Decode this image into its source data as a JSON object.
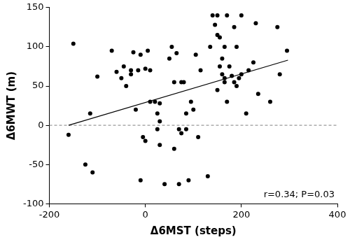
{
  "chart_data": {
    "type": "scatter",
    "x_label": "Δ6MST (steps)",
    "y_label": "Δ6MWT (m)",
    "annotation": "r=0.34; P=0.03",
    "xlim": [
      -200,
      400
    ],
    "xticks": [
      -200,
      0,
      200,
      400
    ],
    "ylim": [
      -100,
      150
    ],
    "yticks": [
      -100,
      -50,
      0,
      50,
      100,
      150
    ],
    "grid": false,
    "series": [
      {
        "type": "scatter",
        "color": "#000000",
        "marker": "circle",
        "x": [
          -150,
          -160,
          -125,
          -110,
          -115,
          -100,
          -70,
          -60,
          -50,
          -45,
          -40,
          -30,
          -25,
          -15,
          -10,
          0,
          5,
          10,
          -5,
          0,
          -20,
          -10,
          10,
          20,
          25,
          25,
          30,
          30,
          30,
          40,
          50,
          55,
          60,
          65,
          70,
          75,
          70,
          75,
          80,
          85,
          85,
          90,
          95,
          60,
          100,
          110,
          115,
          130,
          135,
          140,
          145,
          150,
          155,
          150,
          155,
          160,
          165,
          160,
          165,
          165,
          170,
          175,
          180,
          185,
          185,
          190,
          195,
          200,
          200,
          210,
          215,
          225,
          230,
          235,
          260,
          275,
          280,
          295,
          170,
          150,
          105,
          190,
          -30
        ],
        "values": [
          104,
          -12,
          -50,
          -60,
          15,
          62,
          95,
          68,
          60,
          75,
          50,
          65,
          93,
          70,
          90,
          72,
          95,
          70,
          -15,
          -20,
          20,
          -70,
          30,
          30,
          -5,
          15,
          5,
          28,
          -25,
          -75,
          85,
          100,
          55,
          92,
          -75,
          -10,
          -5,
          55,
          55,
          -5,
          15,
          -70,
          30,
          -30,
          20,
          -15,
          70,
          -65,
          100,
          140,
          128,
          140,
          112,
          115,
          75,
          85,
          55,
          65,
          60,
          100,
          140,
          75,
          63,
          55,
          125,
          50,
          60,
          140,
          65,
          15,
          70,
          80,
          130,
          40,
          30,
          125,
          65,
          95,
          30,
          45,
          90,
          100,
          70
        ]
      },
      {
        "type": "line",
        "color": "#000000",
        "line_style": "solid",
        "x": [
          -160,
          297
        ],
        "values": [
          0,
          83
        ]
      },
      {
        "type": "line",
        "color": "#999999",
        "line_style": "dashed",
        "x": [
          -200,
          400
        ],
        "values": [
          0,
          0
        ]
      }
    ]
  }
}
